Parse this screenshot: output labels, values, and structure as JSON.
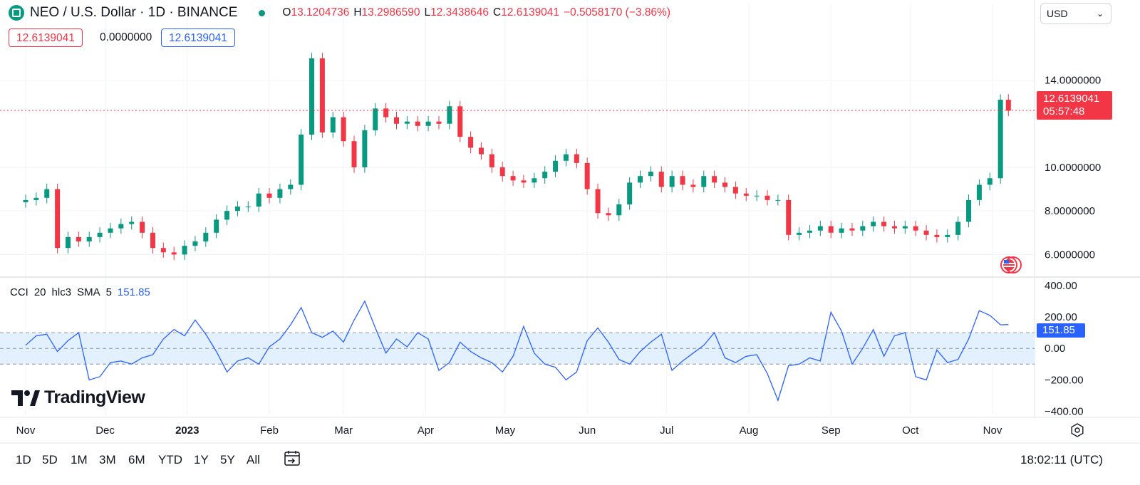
{
  "header": {
    "symbol_title": "NEO / U.S. Dollar · 1D · BINANCE",
    "ohlc": [
      {
        "label": "O",
        "value": "13.1204736"
      },
      {
        "label": "H",
        "value": "13.2986590"
      },
      {
        "label": "L",
        "value": "12.3438646"
      },
      {
        "label": "C",
        "value": "12.6139041"
      }
    ],
    "change": "−0.5058170 (−3.86%)"
  },
  "price_boxes": {
    "sell": "12.6139041",
    "spread": "0.0000000",
    "buy": "12.6139041"
  },
  "currency_select": "USD",
  "last_price_tag": {
    "price": "12.6139041",
    "countdown": "05:57:48"
  },
  "indicator": {
    "name": "CCI",
    "params": [
      "20",
      "hlc3",
      "SMA",
      "5"
    ],
    "value": "151.85"
  },
  "brand": "TradingView",
  "ranges": [
    "1D",
    "5D",
    "1M",
    "3M",
    "6M",
    "YTD",
    "1Y",
    "5Y",
    "All"
  ],
  "clock": "18:02:11 (UTC)",
  "colors": {
    "up": "#089981",
    "down": "#f23645",
    "cci": "#2962ff",
    "band": "#e3f0fd"
  },
  "chart_data": [
    {
      "type": "candlestick",
      "series_name": "NEO / U.S. Dollar",
      "x_tick_labels": [
        "Nov",
        "Dec",
        "2023",
        "Feb",
        "Mar",
        "Apr",
        "May",
        "Jun",
        "Jul",
        "Aug",
        "Sep",
        "Oct",
        "Nov"
      ],
      "y_tick_labels": [
        "14.0000000",
        "10.0000000",
        "8.0000000",
        "6.0000000"
      ],
      "ylim": [
        5.0,
        16.5
      ],
      "last_price": 12.6139041,
      "grid": true,
      "x": [
        "2022-11-01",
        "2022-11-05",
        "2022-11-09",
        "2022-11-13",
        "2022-11-17",
        "2022-11-21",
        "2022-11-25",
        "2022-11-29",
        "2022-12-03",
        "2022-12-07",
        "2022-12-11",
        "2022-12-15",
        "2022-12-19",
        "2022-12-23",
        "2022-12-27",
        "2022-12-31",
        "2023-01-04",
        "2023-01-08",
        "2023-01-12",
        "2023-01-16",
        "2023-01-20",
        "2023-01-24",
        "2023-01-28",
        "2023-02-01",
        "2023-02-05",
        "2023-02-09",
        "2023-02-13",
        "2023-02-17",
        "2023-02-21",
        "2023-02-25",
        "2023-03-01",
        "2023-03-05",
        "2023-03-09",
        "2023-03-13",
        "2023-03-17",
        "2023-03-21",
        "2023-03-25",
        "2023-03-29",
        "2023-04-02",
        "2023-04-06",
        "2023-04-10",
        "2023-04-14",
        "2023-04-18",
        "2023-04-22",
        "2023-04-26",
        "2023-04-30",
        "2023-05-04",
        "2023-05-08",
        "2023-05-12",
        "2023-05-16",
        "2023-05-20",
        "2023-05-24",
        "2023-05-28",
        "2023-06-01",
        "2023-06-05",
        "2023-06-09",
        "2023-06-13",
        "2023-06-17",
        "2023-06-21",
        "2023-06-25",
        "2023-06-29",
        "2023-07-03",
        "2023-07-07",
        "2023-07-11",
        "2023-07-15",
        "2023-07-19",
        "2023-07-23",
        "2023-07-27",
        "2023-07-31",
        "2023-08-04",
        "2023-08-08",
        "2023-08-12",
        "2023-08-16",
        "2023-08-20",
        "2023-08-24",
        "2023-08-28",
        "2023-09-01",
        "2023-09-05",
        "2023-09-09",
        "2023-09-13",
        "2023-09-17",
        "2023-09-21",
        "2023-09-25",
        "2023-09-29",
        "2023-10-03",
        "2023-10-07",
        "2023-10-11",
        "2023-10-15",
        "2023-10-19",
        "2023-10-23",
        "2023-10-27",
        "2023-10-31",
        "2023-11-04",
        "2023-11-07"
      ],
      "close": [
        8.5,
        8.6,
        9.0,
        6.3,
        6.8,
        6.6,
        6.8,
        7.0,
        7.2,
        7.4,
        7.5,
        7.0,
        6.3,
        6.1,
        6.0,
        6.4,
        6.6,
        7.0,
        7.6,
        8.0,
        8.2,
        8.2,
        8.8,
        8.6,
        9.0,
        9.2,
        11.5,
        15.0,
        11.6,
        12.3,
        11.2,
        10.0,
        11.7,
        12.7,
        12.3,
        12.0,
        12.1,
        11.9,
        12.1,
        12.0,
        12.8,
        11.4,
        10.9,
        10.6,
        10.0,
        9.6,
        9.4,
        9.3,
        9.5,
        9.8,
        10.3,
        10.6,
        10.2,
        9.0,
        7.9,
        7.8,
        8.3,
        9.3,
        9.6,
        9.8,
        9.1,
        9.6,
        9.2,
        9.1,
        9.6,
        9.3,
        9.1,
        8.8,
        8.7,
        8.7,
        8.5,
        8.5,
        6.9,
        7.0,
        7.1,
        7.3,
        7.0,
        7.2,
        7.1,
        7.3,
        7.5,
        7.3,
        7.2,
        7.3,
        7.1,
        6.9,
        6.8,
        6.9,
        7.5,
        8.5,
        9.2,
        9.5,
        13.1,
        12.6
      ]
    },
    {
      "type": "line",
      "series_name": "CCI",
      "y_tick_labels": [
        "400.00",
        "200.00",
        "0.00",
        "−200.00",
        "−400.00"
      ],
      "ylim": [
        -420,
        440
      ],
      "bands": [
        100,
        0,
        -100
      ],
      "last_value": 151.85,
      "values": [
        20,
        80,
        90,
        -20,
        50,
        100,
        -200,
        -180,
        -90,
        -80,
        -100,
        -60,
        -40,
        60,
        120,
        80,
        180,
        90,
        -20,
        -150,
        -80,
        -60,
        -100,
        10,
        60,
        150,
        260,
        100,
        70,
        110,
        40,
        180,
        300,
        130,
        -30,
        60,
        10,
        100,
        60,
        -140,
        -90,
        40,
        -20,
        -60,
        -90,
        -150,
        -50,
        140,
        -30,
        -100,
        -120,
        -200,
        -150,
        50,
        130,
        40,
        -70,
        -100,
        -20,
        40,
        90,
        -140,
        -80,
        -30,
        20,
        100,
        -60,
        -90,
        -50,
        -40,
        -160,
        -330,
        -110,
        -100,
        -60,
        -80,
        230,
        110,
        -100,
        0,
        120,
        -50,
        80,
        100,
        -180,
        -200,
        -10,
        -90,
        -70,
        60,
        240,
        210,
        150,
        151.85
      ]
    }
  ]
}
